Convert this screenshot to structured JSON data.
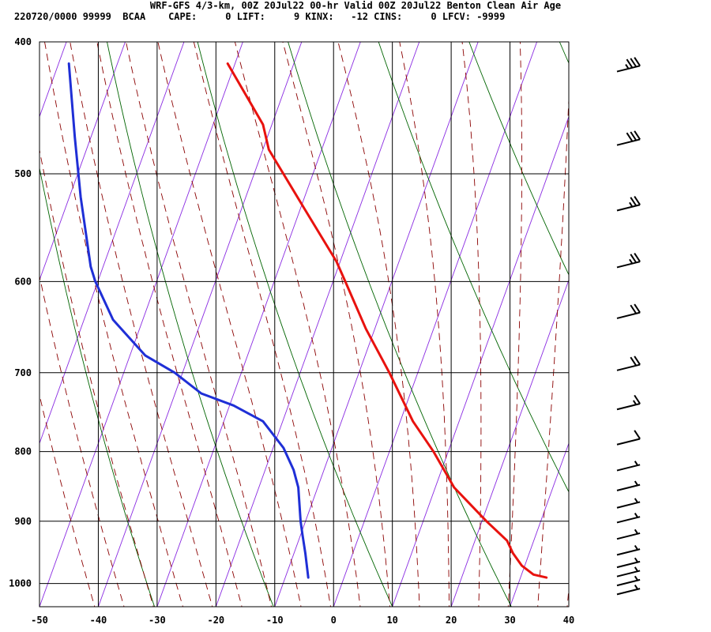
{
  "header": {
    "line1": "WRF-GFS 4/3-km, 00Z 20Jul22 00-hr Valid 00Z 20Jul22 Benton Clean Air Age",
    "line2": "220720/0000 99999  BCAA    CAPE:     0 LIFT:     9 KINX:   -12 CINS:     0 LFCV: -9999"
  },
  "colors": {
    "temperature": "#e8120e",
    "dewpoint": "#1f2fd6",
    "isotherm_skewed": "#8a2be2",
    "dry_adiabat": "#006400",
    "moist_adiabat": "#8b0000",
    "grid": "#000000"
  },
  "chart_data": {
    "type": "line",
    "subtype": "skew-T log-P sounding",
    "x_axis": {
      "label": "",
      "range": [
        -50,
        40
      ],
      "ticks": [
        "-50",
        "-40",
        "-30",
        "-20",
        "-10",
        "0",
        "10",
        "20",
        "30",
        "40"
      ]
    },
    "y_axis": {
      "label": "",
      "scale": "log",
      "range": [
        1040,
        400
      ],
      "ticks": [
        "400",
        "500",
        "600",
        "700",
        "800",
        "900",
        "1000"
      ]
    },
    "series": [
      {
        "role": "temperature",
        "points": [
          {
            "p": 990,
            "x": 36.2
          },
          {
            "p": 985,
            "x": 34.0
          },
          {
            "p": 970,
            "x": 32.0
          },
          {
            "p": 950,
            "x": 30.5
          },
          {
            "p": 930,
            "x": 29.5
          },
          {
            "p": 900,
            "x": 26.0
          },
          {
            "p": 850,
            "x": 20.5
          },
          {
            "p": 800,
            "x": 17.0
          },
          {
            "p": 760,
            "x": 13.5
          },
          {
            "p": 700,
            "x": 9.5
          },
          {
            "p": 650,
            "x": 5.5
          },
          {
            "p": 600,
            "x": 2.0
          },
          {
            "p": 580,
            "x": 0.5
          },
          {
            "p": 530,
            "x": -5.0
          },
          {
            "p": 480,
            "x": -11.0
          },
          {
            "p": 460,
            "x": -12.0
          },
          {
            "p": 415,
            "x": -18.0
          }
        ]
      },
      {
        "role": "dewpoint",
        "points": [
          {
            "p": 990,
            "x": -4.3
          },
          {
            "p": 950,
            "x": -4.8
          },
          {
            "p": 920,
            "x": -5.3
          },
          {
            "p": 900,
            "x": -5.6
          },
          {
            "p": 850,
            "x": -6.0
          },
          {
            "p": 825,
            "x": -6.8
          },
          {
            "p": 795,
            "x": -8.5
          },
          {
            "p": 760,
            "x": -12.0
          },
          {
            "p": 740,
            "x": -17.0
          },
          {
            "p": 725,
            "x": -22.5
          },
          {
            "p": 700,
            "x": -27.0
          },
          {
            "p": 680,
            "x": -32.0
          },
          {
            "p": 640,
            "x": -37.5
          },
          {
            "p": 600,
            "x": -40.5
          },
          {
            "p": 585,
            "x": -41.3
          },
          {
            "p": 520,
            "x": -43.0
          },
          {
            "p": 470,
            "x": -44.0
          },
          {
            "p": 415,
            "x": -45.0
          }
        ]
      }
    ],
    "wind_barbs": [
      {
        "p": 415,
        "speed": 35
      },
      {
        "p": 470,
        "speed": 30
      },
      {
        "p": 525,
        "speed": 25
      },
      {
        "p": 578,
        "speed": 25
      },
      {
        "p": 630,
        "speed": 20
      },
      {
        "p": 688,
        "speed": 20
      },
      {
        "p": 735,
        "speed": 15
      },
      {
        "p": 780,
        "speed": 10
      },
      {
        "p": 815,
        "speed": 5
      },
      {
        "p": 843,
        "speed": 5
      },
      {
        "p": 868,
        "speed": 5
      },
      {
        "p": 890,
        "speed": 5
      },
      {
        "p": 915,
        "speed": 5
      },
      {
        "p": 940,
        "speed": 5
      },
      {
        "p": 960,
        "speed": 5
      },
      {
        "p": 975,
        "speed": 5
      },
      {
        "p": 990,
        "speed": 5
      },
      {
        "p": 1005,
        "speed": 5
      }
    ],
    "grid": true
  }
}
